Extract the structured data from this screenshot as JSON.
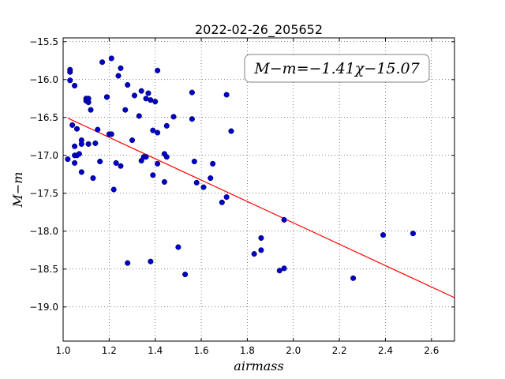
{
  "chart_data": {
    "type": "scatter",
    "title": "2022-02-26_205652",
    "xlabel": "airmass",
    "ylabel": "M−m",
    "annotation": "M−m=−1.41χ−15.07",
    "xlim": [
      1.0,
      2.7
    ],
    "ylim": [
      -19.45,
      -15.45
    ],
    "y_inverted": true,
    "grid": true,
    "x_ticks": [
      1.0,
      1.2,
      1.4,
      1.6,
      1.8,
      2.0,
      2.2,
      2.4,
      2.6
    ],
    "x_tick_labels": [
      "1.0",
      "1.2",
      "1.4",
      "1.6",
      "1.8",
      "2.0",
      "2.2",
      "2.4",
      "2.6"
    ],
    "y_ticks": [
      -15.5,
      -16.0,
      -16.5,
      -17.0,
      -17.5,
      -18.0,
      -18.5,
      -19.0
    ],
    "y_tick_labels": [
      "−15.5",
      "−16.0",
      "−16.5",
      "−17.0",
      "−17.5",
      "−18.0",
      "−18.5",
      "−19.0"
    ],
    "point_color": "#0000cc",
    "fit_color": "#ff0000",
    "fit": {
      "slope": -1.41,
      "intercept": -15.07,
      "x_range": [
        1.02,
        2.7
      ]
    },
    "points": [
      [
        1.02,
        -17.05
      ],
      [
        1.03,
        -15.87
      ],
      [
        1.03,
        -15.9
      ],
      [
        1.03,
        -16.01
      ],
      [
        1.04,
        -16.6
      ],
      [
        1.05,
        -16.08
      ],
      [
        1.05,
        -16.88
      ],
      [
        1.05,
        -17.0
      ],
      [
        1.05,
        -17.1
      ],
      [
        1.06,
        -16.65
      ],
      [
        1.06,
        -17.0
      ],
      [
        1.07,
        -16.98
      ],
      [
        1.08,
        -16.8
      ],
      [
        1.08,
        -16.85
      ],
      [
        1.08,
        -17.22
      ],
      [
        1.1,
        -16.25
      ],
      [
        1.1,
        -16.28
      ],
      [
        1.11,
        -16.3
      ],
      [
        1.11,
        -16.85
      ],
      [
        1.11,
        -16.25
      ],
      [
        1.12,
        -16.4
      ],
      [
        1.13,
        -17.3
      ],
      [
        1.14,
        -16.84
      ],
      [
        1.15,
        -16.66
      ],
      [
        1.16,
        -17.08
      ],
      [
        1.17,
        -15.77
      ],
      [
        1.19,
        -16.23
      ],
      [
        1.19,
        -16.23
      ],
      [
        1.2,
        -16.72
      ],
      [
        1.21,
        -15.72
      ],
      [
        1.21,
        -16.72
      ],
      [
        1.22,
        -17.45
      ],
      [
        1.23,
        -17.1
      ],
      [
        1.24,
        -15.95
      ],
      [
        1.25,
        -15.85
      ],
      [
        1.25,
        -17.14
      ],
      [
        1.27,
        -16.4
      ],
      [
        1.28,
        -16.07
      ],
      [
        1.28,
        -18.42
      ],
      [
        1.3,
        -16.8
      ],
      [
        1.31,
        -16.21
      ],
      [
        1.33,
        -16.48
      ],
      [
        1.34,
        -16.15
      ],
      [
        1.34,
        -17.07
      ],
      [
        1.35,
        -17.02
      ],
      [
        1.36,
        -16.25
      ],
      [
        1.36,
        -17.02
      ],
      [
        1.37,
        -16.18
      ],
      [
        1.38,
        -16.27
      ],
      [
        1.38,
        -18.4
      ],
      [
        1.39,
        -16.67
      ],
      [
        1.39,
        -17.26
      ],
      [
        1.4,
        -16.29
      ],
      [
        1.41,
        -15.88
      ],
      [
        1.41,
        -16.7
      ],
      [
        1.41,
        -17.11
      ],
      [
        1.44,
        -17.35
      ],
      [
        1.44,
        -16.98
      ],
      [
        1.45,
        -16.61
      ],
      [
        1.45,
        -17.02
      ],
      [
        1.48,
        -16.49
      ],
      [
        1.5,
        -18.21
      ],
      [
        1.53,
        -18.57
      ],
      [
        1.56,
        -16.17
      ],
      [
        1.56,
        -16.52
      ],
      [
        1.57,
        -17.08
      ],
      [
        1.58,
        -17.36
      ],
      [
        1.61,
        -17.42
      ],
      [
        1.64,
        -17.3
      ],
      [
        1.65,
        -17.11
      ],
      [
        1.69,
        -17.62
      ],
      [
        1.71,
        -17.55
      ],
      [
        1.71,
        -16.2
      ],
      [
        1.73,
        -16.68
      ],
      [
        1.83,
        -18.3
      ],
      [
        1.86,
        -18.09
      ],
      [
        1.86,
        -18.25
      ],
      [
        1.94,
        -18.52
      ],
      [
        1.96,
        -17.85
      ],
      [
        1.96,
        -18.49
      ],
      [
        2.26,
        -18.62
      ],
      [
        2.39,
        -18.05
      ],
      [
        2.52,
        -18.03
      ]
    ]
  }
}
